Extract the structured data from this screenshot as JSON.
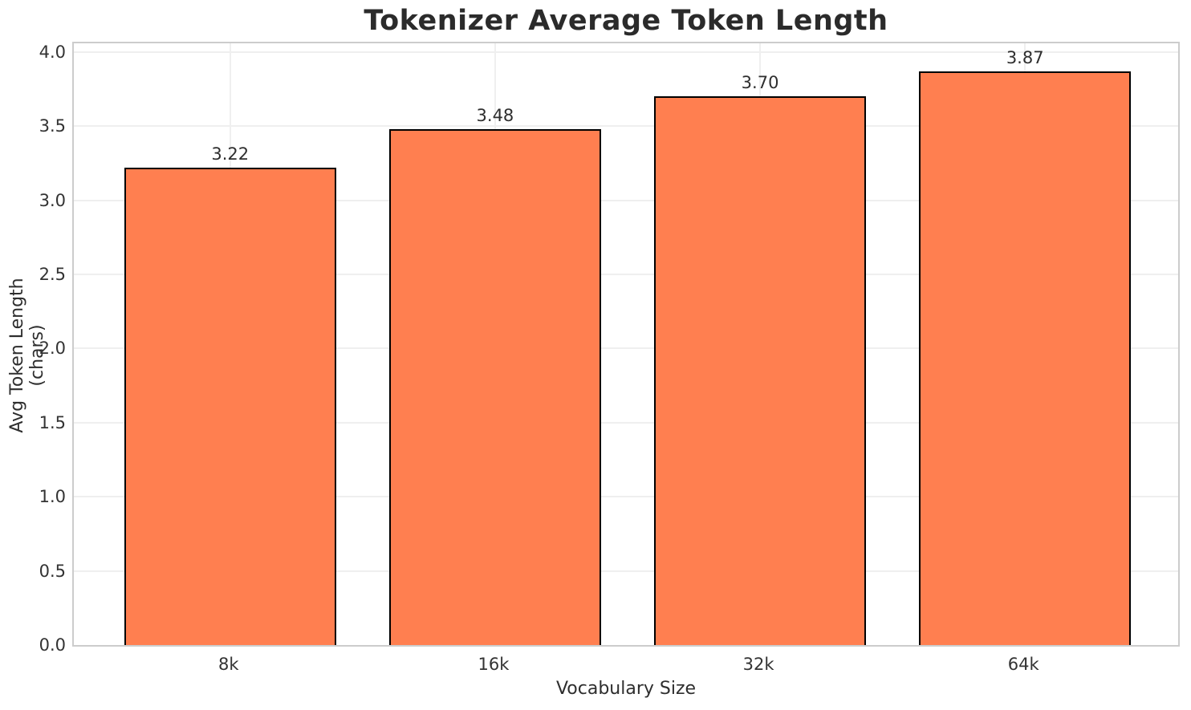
{
  "chart_data": {
    "type": "bar",
    "title": "Tokenizer Average Token Length",
    "xlabel": "Vocabulary Size",
    "ylabel": "Avg Token Length (chars)",
    "categories": [
      "8k",
      "16k",
      "32k",
      "64k"
    ],
    "values": [
      3.22,
      3.48,
      3.7,
      3.87
    ],
    "value_labels": [
      "3.22",
      "3.48",
      "3.70",
      "3.87"
    ],
    "ylim": [
      0,
      4.08
    ],
    "yticks": [
      0.0,
      0.5,
      1.0,
      1.5,
      2.0,
      2.5,
      3.0,
      3.5,
      4.0
    ],
    "ytick_labels": [
      "0.0",
      "0.5",
      "1.0",
      "1.5",
      "2.0",
      "2.5",
      "3.0",
      "3.5",
      "4.0"
    ],
    "grid": true,
    "legend": "none",
    "colors": {
      "bar_fill": "#FF7F50",
      "bar_edge": "#000000",
      "grid": "#efefef",
      "spine": "#cccccc",
      "text": "#2e2e2e"
    }
  }
}
